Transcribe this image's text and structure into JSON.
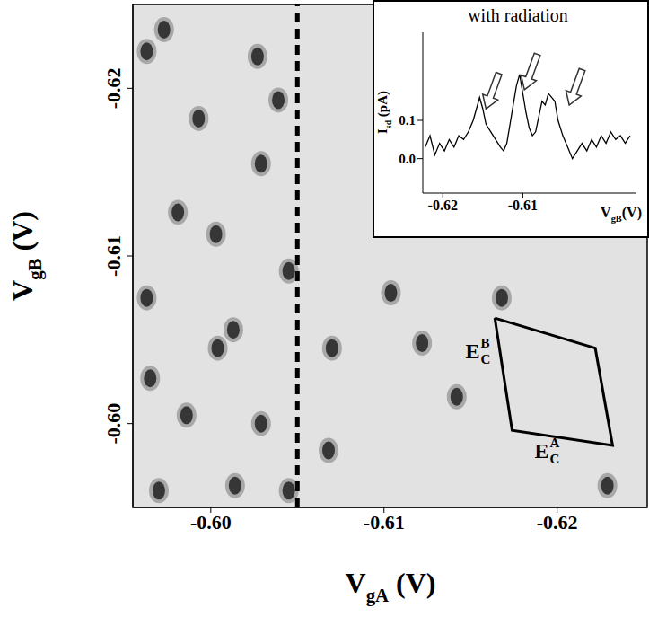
{
  "chart_data": [
    {
      "type": "scatter",
      "x_label": {
        "text": "V",
        "sub": "gA",
        "after": " (V)"
      },
      "y_label": {
        "text": "V",
        "sub": "gB",
        "after": " (V)"
      },
      "xlim": [
        -0.5955,
        -0.6252
      ],
      "xticks": [
        {
          "value": -0.6,
          "label": "-0.60"
        },
        -0.61,
        -0.62
      ],
      "ylim": [
        -0.595,
        -0.625
      ],
      "yticks": [
        {
          "value": -0.6,
          "label": "-0.60"
        },
        -0.61,
        -0.62
      ],
      "series": [
        {
          "color": "#222222",
          "marker": "ellipse",
          "x": [
            -0.6013,
            -0.6003,
            -0.6027,
            -0.6029,
            -0.5973,
            -0.5993,
            -0.5965,
            -0.5963,
            -0.5981,
            -0.597,
            -0.5986,
            -0.6014,
            -0.6029,
            -0.6045,
            -0.607,
            -0.6068,
            -0.6104,
            -0.6142,
            -0.6168,
            -0.6122,
            -0.6229,
            -0.6004,
            -0.5963,
            -0.6039,
            -0.6045
          ],
          "y": [
            -0.6056,
            -0.6113,
            -0.6219,
            -0.6155,
            -0.6235,
            -0.6182,
            -0.6027,
            -0.6075,
            -0.6126,
            -0.596,
            -0.6005,
            -0.5963,
            -0.6,
            -0.596,
            -0.6045,
            -0.5984,
            -0.6078,
            -0.6016,
            -0.6075,
            -0.6048,
            -0.5963,
            -0.6045,
            -0.6222,
            -0.6193,
            -0.6091
          ]
        }
      ],
      "reference_line": {
        "x": -0.605,
        "line_style": "dashed",
        "color": "#000000"
      },
      "parallelogram": {
        "x": [
          -0.6164,
          -0.6222,
          -0.6232,
          -0.6174
        ],
        "y": [
          -0.6063,
          -0.6045,
          -0.5987,
          -0.5996
        ],
        "color": "#000000"
      },
      "annotations": [
        {
          "text": "E",
          "sub": "C",
          "sup": "B",
          "x": -0.6147,
          "y": -0.6043
        },
        {
          "text": "E",
          "sub": "C",
          "sup": "A",
          "x": -0.6187,
          "y": -0.5984
        }
      ]
    },
    {
      "type": "line",
      "title": "with radiation",
      "x_label": {
        "text": "V",
        "sub": "gB",
        "after": "(V)"
      },
      "y_label": {
        "text": "I",
        "sub": "sd",
        "after": " (pA)"
      },
      "xlim": [
        -0.6225,
        -0.5958
      ],
      "xticks": [
        -0.62,
        -0.61
      ],
      "ylim": [
        -0.09,
        0.33
      ],
      "yticks": [
        {
          "value": 0,
          "label": "0.0"
        },
        {
          "value": 0.1,
          "label": "0.1"
        }
      ],
      "color": "#000000",
      "x": [
        -0.6222,
        -0.6216,
        -0.621,
        -0.6204,
        -0.6198,
        -0.6192,
        -0.6186,
        -0.618,
        -0.6174,
        -0.6168,
        -0.6162,
        -0.6158,
        -0.6154,
        -0.615,
        -0.6146,
        -0.614,
        -0.6134,
        -0.6128,
        -0.6124,
        -0.612,
        -0.6116,
        -0.6112,
        -0.6108,
        -0.6104,
        -0.61,
        -0.6096,
        -0.6092,
        -0.6088,
        -0.6084,
        -0.608,
        -0.6076,
        -0.6072,
        -0.6068,
        -0.6064,
        -0.606,
        -0.6056,
        -0.605,
        -0.6044,
        -0.6038,
        -0.6032,
        -0.6026,
        -0.602,
        -0.6014,
        -0.6008,
        -0.6002,
        -0.5996,
        -0.599,
        -0.5984,
        -0.5978,
        -0.5972,
        -0.5966
      ],
      "values": [
        0.03,
        0.06,
        0.01,
        0.04,
        0.02,
        0.05,
        0.03,
        0.06,
        0.05,
        0.07,
        0.1,
        0.13,
        0.16,
        0.13,
        0.09,
        0.07,
        0.05,
        0.03,
        0.02,
        0.04,
        0.09,
        0.14,
        0.19,
        0.22,
        0.17,
        0.12,
        0.08,
        0.06,
        0.07,
        0.11,
        0.15,
        0.14,
        0.17,
        0.16,
        0.15,
        0.1,
        0.06,
        0.03,
        0.0,
        0.02,
        0.04,
        0.02,
        0.05,
        0.03,
        0.06,
        0.04,
        0.07,
        0.05,
        0.06,
        0.04,
        0.06
      ],
      "arrows": {
        "x": [
          -0.6146,
          -0.6098,
          -0.6042
        ],
        "y": [
          0.13,
          0.18,
          0.14
        ]
      }
    }
  ]
}
